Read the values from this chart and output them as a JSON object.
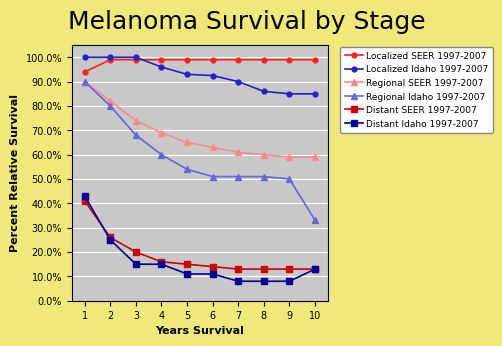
{
  "title": "Melanoma Survival by Stage",
  "xlabel": "Years Survival",
  "ylabel": "Percent Relative Survival",
  "background_color": "#f0e878",
  "plot_bg_color": "#c8c8c8",
  "years": [
    1,
    2,
    3,
    4,
    5,
    6,
    7,
    8,
    9,
    10
  ],
  "series": [
    {
      "label": "Localized SEER 1997-2007",
      "color": "#ff2222",
      "marker": "o",
      "markersize": 3.5,
      "linewidth": 1.2,
      "values": [
        94.0,
        99.0,
        99.0,
        99.0,
        99.0,
        99.0,
        99.0,
        99.0,
        99.0,
        99.0
      ]
    },
    {
      "label": "Localized Idaho 1997-2007",
      "color": "#2222cc",
      "marker": "o",
      "markersize": 3.5,
      "linewidth": 1.2,
      "values": [
        100.0,
        100.0,
        100.0,
        96.0,
        93.0,
        92.5,
        90.0,
        86.0,
        85.0,
        85.0
      ]
    },
    {
      "label": "Regional SEER 1997-2007",
      "color": "#ff8888",
      "marker": "^",
      "markersize": 5,
      "linewidth": 1.2,
      "values": [
        90.0,
        82.0,
        74.0,
        69.0,
        65.0,
        63.0,
        61.0,
        60.0,
        59.0,
        59.0
      ]
    },
    {
      "label": "Regional Idaho 1997-2007",
      "color": "#6666dd",
      "marker": "^",
      "markersize": 5,
      "linewidth": 1.2,
      "values": [
        90.0,
        80.0,
        68.0,
        60.0,
        54.0,
        51.0,
        51.0,
        51.0,
        50.0,
        33.0
      ]
    },
    {
      "label": "Distant SEER 1997-2007",
      "color": "#cc0000",
      "marker": "s",
      "markersize": 4,
      "linewidth": 1.2,
      "values": [
        41.0,
        26.0,
        20.0,
        16.0,
        15.0,
        14.0,
        13.0,
        13.0,
        13.0,
        13.0
      ]
    },
    {
      "label": "Distant Idaho 1997-2007",
      "color": "#000099",
      "marker": "s",
      "markersize": 4,
      "linewidth": 1.2,
      "values": [
        43.0,
        25.0,
        15.0,
        15.0,
        11.0,
        11.0,
        8.0,
        8.0,
        8.0,
        13.0
      ]
    }
  ],
  "yticks": [
    0,
    10,
    20,
    30,
    40,
    50,
    60,
    70,
    80,
    90,
    100
  ],
  "ytick_labels": [
    "0.0%",
    "10.0%",
    "20.0%",
    "30.0%",
    "40.0%",
    "50.0%",
    "60.0%",
    "70.0%",
    "80.0%",
    "90.0%",
    "100.0%"
  ],
  "title_fontsize": 18,
  "axis_label_fontsize": 8,
  "tick_fontsize": 7,
  "legend_fontsize": 6.5
}
